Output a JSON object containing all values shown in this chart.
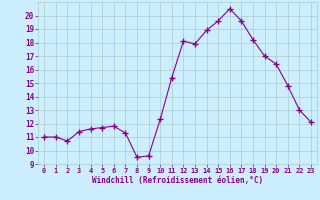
{
  "x": [
    0,
    1,
    2,
    3,
    4,
    5,
    6,
    7,
    8,
    9,
    10,
    11,
    12,
    13,
    14,
    15,
    16,
    17,
    18,
    19,
    20,
    21,
    22,
    23
  ],
  "y": [
    11,
    11,
    10.7,
    11.4,
    11.6,
    11.7,
    11.8,
    11.3,
    9.5,
    9.6,
    12.3,
    15.4,
    18.1,
    17.9,
    18.9,
    19.6,
    20.5,
    19.6,
    18.2,
    17.0,
    16.4,
    14.8,
    13.0,
    12.1
  ],
  "line_color": "#880088",
  "marker": "+",
  "marker_size": 4,
  "bg_color": "#cceeff",
  "grid_color": "#aacccc",
  "xlabel": "Windchill (Refroidissement éolien,°C)",
  "xlim": [
    -0.5,
    23.5
  ],
  "ylim": [
    9,
    21
  ],
  "yticks": [
    9,
    10,
    11,
    12,
    13,
    14,
    15,
    16,
    17,
    18,
    19,
    20
  ],
  "xticks": [
    0,
    1,
    2,
    3,
    4,
    5,
    6,
    7,
    8,
    9,
    10,
    11,
    12,
    13,
    14,
    15,
    16,
    17,
    18,
    19,
    20,
    21,
    22,
    23
  ],
  "tick_color": "#880088",
  "label_color": "#880088"
}
